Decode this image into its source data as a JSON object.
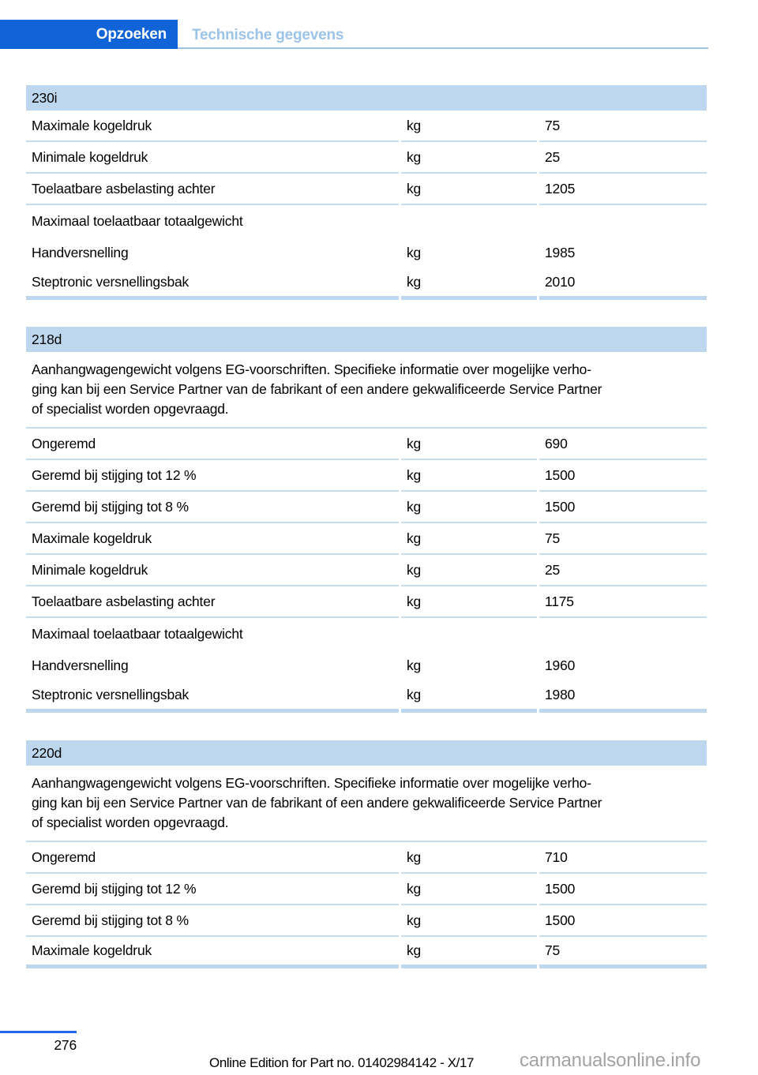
{
  "nav": {
    "primary_tab": "Opzoeken",
    "secondary_tab": "Technische gegevens"
  },
  "sections": [
    {
      "title": "230i",
      "intro": "",
      "rows": [
        {
          "label": "Maximale kogeldruk",
          "unit": "kg",
          "value": "75",
          "sep": true
        },
        {
          "label": "Minimale kogeldruk",
          "unit": "kg",
          "value": "25",
          "sep": true
        },
        {
          "label": "Toelaatbare asbelasting achter",
          "unit": "kg",
          "value": "1205",
          "sep": true
        },
        {
          "label": "Maximaal toelaatbaar totaalgewicht",
          "unit": "",
          "value": "",
          "sep": false
        },
        {
          "label": "Handversnelling",
          "unit": "kg",
          "value": "1985",
          "sep": false
        },
        {
          "label": "Steptronic versnellingsbak",
          "unit": "kg",
          "value": "2010",
          "sep": false
        }
      ]
    },
    {
      "title": "218d",
      "intro": "Aanhangwagengewicht volgens EG-voorschriften. Specifieke informatie over mogelijke verho-\nging kan bij een Service Partner van de fabrikant of een andere gekwalificeerde Service Partner\nof specialist worden opgevraagd.",
      "rows": [
        {
          "label": "Ongeremd",
          "unit": "kg",
          "value": "690",
          "sep": true
        },
        {
          "label": "Geremd bij stijging tot 12 %",
          "unit": "kg",
          "value": "1500",
          "sep": true
        },
        {
          "label": "Geremd bij stijging tot 8 %",
          "unit": "kg",
          "value": "1500",
          "sep": true
        },
        {
          "label": "Maximale kogeldruk",
          "unit": "kg",
          "value": "75",
          "sep": true
        },
        {
          "label": "Minimale kogeldruk",
          "unit": "kg",
          "value": "25",
          "sep": true
        },
        {
          "label": "Toelaatbare asbelasting achter",
          "unit": "kg",
          "value": "1175",
          "sep": true
        },
        {
          "label": "Maximaal toelaatbaar totaalgewicht",
          "unit": "",
          "value": "",
          "sep": false
        },
        {
          "label": "Handversnelling",
          "unit": "kg",
          "value": "1960",
          "sep": false
        },
        {
          "label": "Steptronic versnellingsbak",
          "unit": "kg",
          "value": "1980",
          "sep": false
        }
      ]
    },
    {
      "title": "220d",
      "intro": "Aanhangwagengewicht volgens EG-voorschriften. Specifieke informatie over mogelijke verho-\nging kan bij een Service Partner van de fabrikant of een andere gekwalificeerde Service Partner\nof specialist worden opgevraagd.",
      "rows": [
        {
          "label": "Ongeremd",
          "unit": "kg",
          "value": "710",
          "sep": true
        },
        {
          "label": "Geremd bij stijging tot 12 %",
          "unit": "kg",
          "value": "1500",
          "sep": true
        },
        {
          "label": "Geremd bij stijging tot 8 %",
          "unit": "kg",
          "value": "1500",
          "sep": true
        },
        {
          "label": "Maximale kogeldruk",
          "unit": "kg",
          "value": "75",
          "sep": true
        }
      ]
    }
  ],
  "footer": {
    "page_number": "276",
    "edition_note": "Online Edition for Part no. 01402984142 - X/17",
    "watermark": "carmanualsonline.info"
  },
  "colors": {
    "accent_blue": "#1164d8",
    "footer_rule_blue": "#2366e8",
    "section_header_bg": "#bdd7ee",
    "separator_blue": "#c5ddf0",
    "inactive_tab_text": "#9cc3e8",
    "watermark_gray": "#a3a3a3"
  }
}
